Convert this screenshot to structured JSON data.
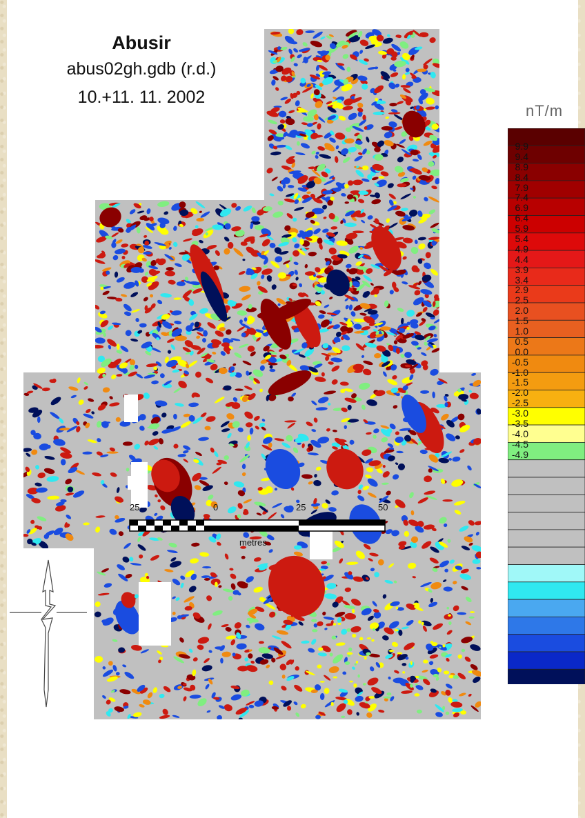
{
  "header": {
    "site": "Abusir",
    "file": "abus02gh.gdb (r.d.)",
    "date": "10.+11. 11. 2002"
  },
  "legend": {
    "unit": "nT/m",
    "labels": [
      "9.9",
      "9.4",
      "8.9",
      "8.4",
      "7.9",
      "7.4",
      "6.9",
      "6.4",
      "5.9",
      "5.4",
      "4.9",
      "4.4",
      "3.9",
      "3.4",
      "2.9",
      "2.5",
      "2.0",
      "1.5",
      "1.0",
      "0.5",
      "0.0",
      "-0.5",
      "-1.0",
      "-1.5",
      "-2.0",
      "-2.5",
      "-3.0",
      "-3.5",
      "-4.0",
      "-4.5",
      "-4.9"
    ],
    "colors": [
      "#5a0000",
      "#6e0000",
      "#8a0000",
      "#a00000",
      "#b80000",
      "#cc0000",
      "#dd0a0a",
      "#e41818",
      "#e82a1a",
      "#ea3a1a",
      "#e85020",
      "#e86020",
      "#ec7818",
      "#f08a10",
      "#f49c10",
      "#f8b010",
      "#ffff00",
      "#ffff90",
      "#80ee80",
      "#c0c0c0",
      "#c0c0c0",
      "#c0c0c0",
      "#c0c0c0",
      "#c0c0c0",
      "#c0c0c0",
      "#a0f8f8",
      "#30e8f0",
      "#4aa8f0",
      "#2e78e8",
      "#1a4ce0",
      "#0a28c8",
      "#00105a"
    ]
  },
  "scale": {
    "ticks": [
      "25",
      "0",
      "25",
      "50"
    ],
    "unit": "metres"
  },
  "colors": {
    "survey_gray": "#c0c0c0",
    "positive": "#cc1a10",
    "positive_dark": "#8a0000",
    "orange": "#f08a10",
    "yellow": "#ffff00",
    "green": "#80ee80",
    "cyan": "#30e8f0",
    "blue": "#1a4ce0",
    "negative_dark": "#00105a"
  }
}
